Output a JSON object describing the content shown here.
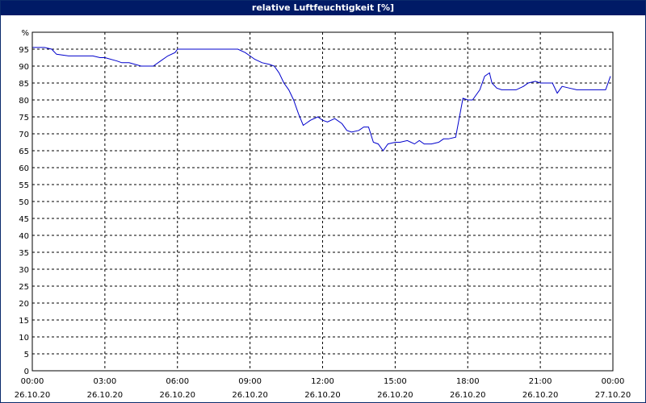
{
  "chart_data": {
    "type": "line",
    "title": "relative Luftfeuchtigkeit [%]",
    "y_unit_label": "%",
    "ylim": [
      0,
      100
    ],
    "y_ticks": [
      0,
      5,
      10,
      15,
      20,
      25,
      30,
      35,
      40,
      45,
      50,
      55,
      60,
      65,
      70,
      75,
      80,
      85,
      90,
      95
    ],
    "grid": true,
    "line_color": "#0000cc",
    "x_ticks": [
      {
        "time": "00:00",
        "date": "26.10.20",
        "hours": 0
      },
      {
        "time": "03:00",
        "date": "26.10.20",
        "hours": 3
      },
      {
        "time": "06:00",
        "date": "26.10.20",
        "hours": 6
      },
      {
        "time": "09:00",
        "date": "26.10.20",
        "hours": 9
      },
      {
        "time": "12:00",
        "date": "26.10.20",
        "hours": 12
      },
      {
        "time": "15:00",
        "date": "26.10.20",
        "hours": 15
      },
      {
        "time": "18:00",
        "date": "26.10.20",
        "hours": 18
      },
      {
        "time": "21:00",
        "date": "26.10.20",
        "hours": 21
      },
      {
        "time": "00:00",
        "date": "27.10.20",
        "hours": 24
      }
    ],
    "xlim_hours": [
      0,
      24
    ],
    "series": [
      {
        "x_hours": [
          0,
          0.5,
          0.8,
          1.0,
          1.5,
          2.0,
          2.5,
          2.8,
          3.0,
          3.5,
          3.7,
          4.0,
          4.5,
          4.8,
          5.0,
          5.3,
          5.6,
          5.9,
          6.0,
          7.0,
          8.0,
          8.5,
          8.8,
          9.0,
          9.2,
          9.5,
          9.8,
          10.0,
          10.2,
          10.4,
          10.6,
          10.8,
          11.0,
          11.2,
          11.5,
          11.8,
          12.0,
          12.2,
          12.5,
          12.8,
          13.0,
          13.2,
          13.5,
          13.7,
          13.9,
          14.1,
          14.3,
          14.5,
          14.7,
          15.0,
          15.2,
          15.5,
          15.8,
          16.0,
          16.2,
          16.5,
          16.8,
          17.0,
          17.2,
          17.5,
          17.8,
          18.0,
          18.2,
          18.5,
          18.7,
          18.9,
          19.0,
          19.2,
          19.4,
          19.6,
          19.8,
          20.0,
          20.3,
          20.5,
          20.8,
          21.0,
          21.3,
          21.5,
          21.7,
          21.9,
          22.2,
          22.5,
          22.8,
          23.0,
          23.3,
          23.5,
          23.7,
          23.9
        ],
        "values": [
          95.5,
          95.5,
          95,
          93.5,
          93,
          93,
          93,
          92.5,
          92.5,
          91.5,
          91,
          91,
          90,
          90,
          90,
          91.5,
          93,
          94,
          95,
          95,
          95,
          95,
          94,
          93,
          92,
          91,
          90.5,
          90,
          88,
          85,
          83,
          80,
          76,
          72.5,
          74,
          75,
          74,
          73.5,
          74.5,
          73,
          71,
          70.5,
          71,
          72,
          72,
          67.5,
          67,
          65,
          67,
          67.5,
          67.5,
          68,
          67,
          68,
          67,
          67,
          67.5,
          68.5,
          68.5,
          69,
          80.5,
          80,
          80,
          83,
          87,
          88,
          85,
          83.5,
          83,
          83,
          83,
          83,
          84,
          85,
          85.5,
          85,
          85,
          85,
          82,
          84,
          83.5,
          83,
          83,
          83,
          83,
          83,
          83,
          87
        ]
      }
    ]
  }
}
